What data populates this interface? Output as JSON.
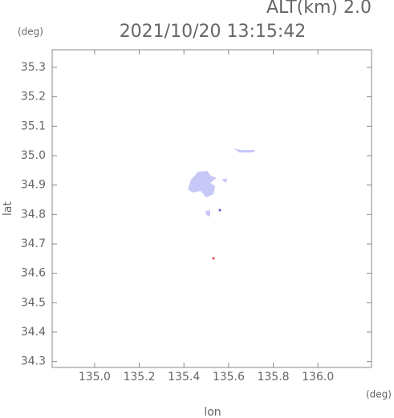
{
  "chart_data": {
    "type": "map",
    "title": "2021/10/20 13:15:42",
    "subtitle": "ALT(km) 2.0",
    "x_label": "lon",
    "y_label": "lat",
    "x_unit": "(deg)",
    "y_unit": "(deg)",
    "xlim": [
      134.81,
      136.24
    ],
    "ylim": [
      34.28,
      35.36
    ],
    "xticks": [
      {
        "value": 135.0,
        "label": "135.0"
      },
      135.2,
      135.4,
      135.6,
      135.8,
      {
        "value": 136.0,
        "label": "136.0"
      }
    ],
    "yticks": [
      34.3,
      34.4,
      34.5,
      34.6,
      34.7,
      34.8,
      34.9,
      {
        "value": 35.0,
        "label": "35.0"
      },
      35.1,
      35.2,
      35.3
    ]
  }
}
